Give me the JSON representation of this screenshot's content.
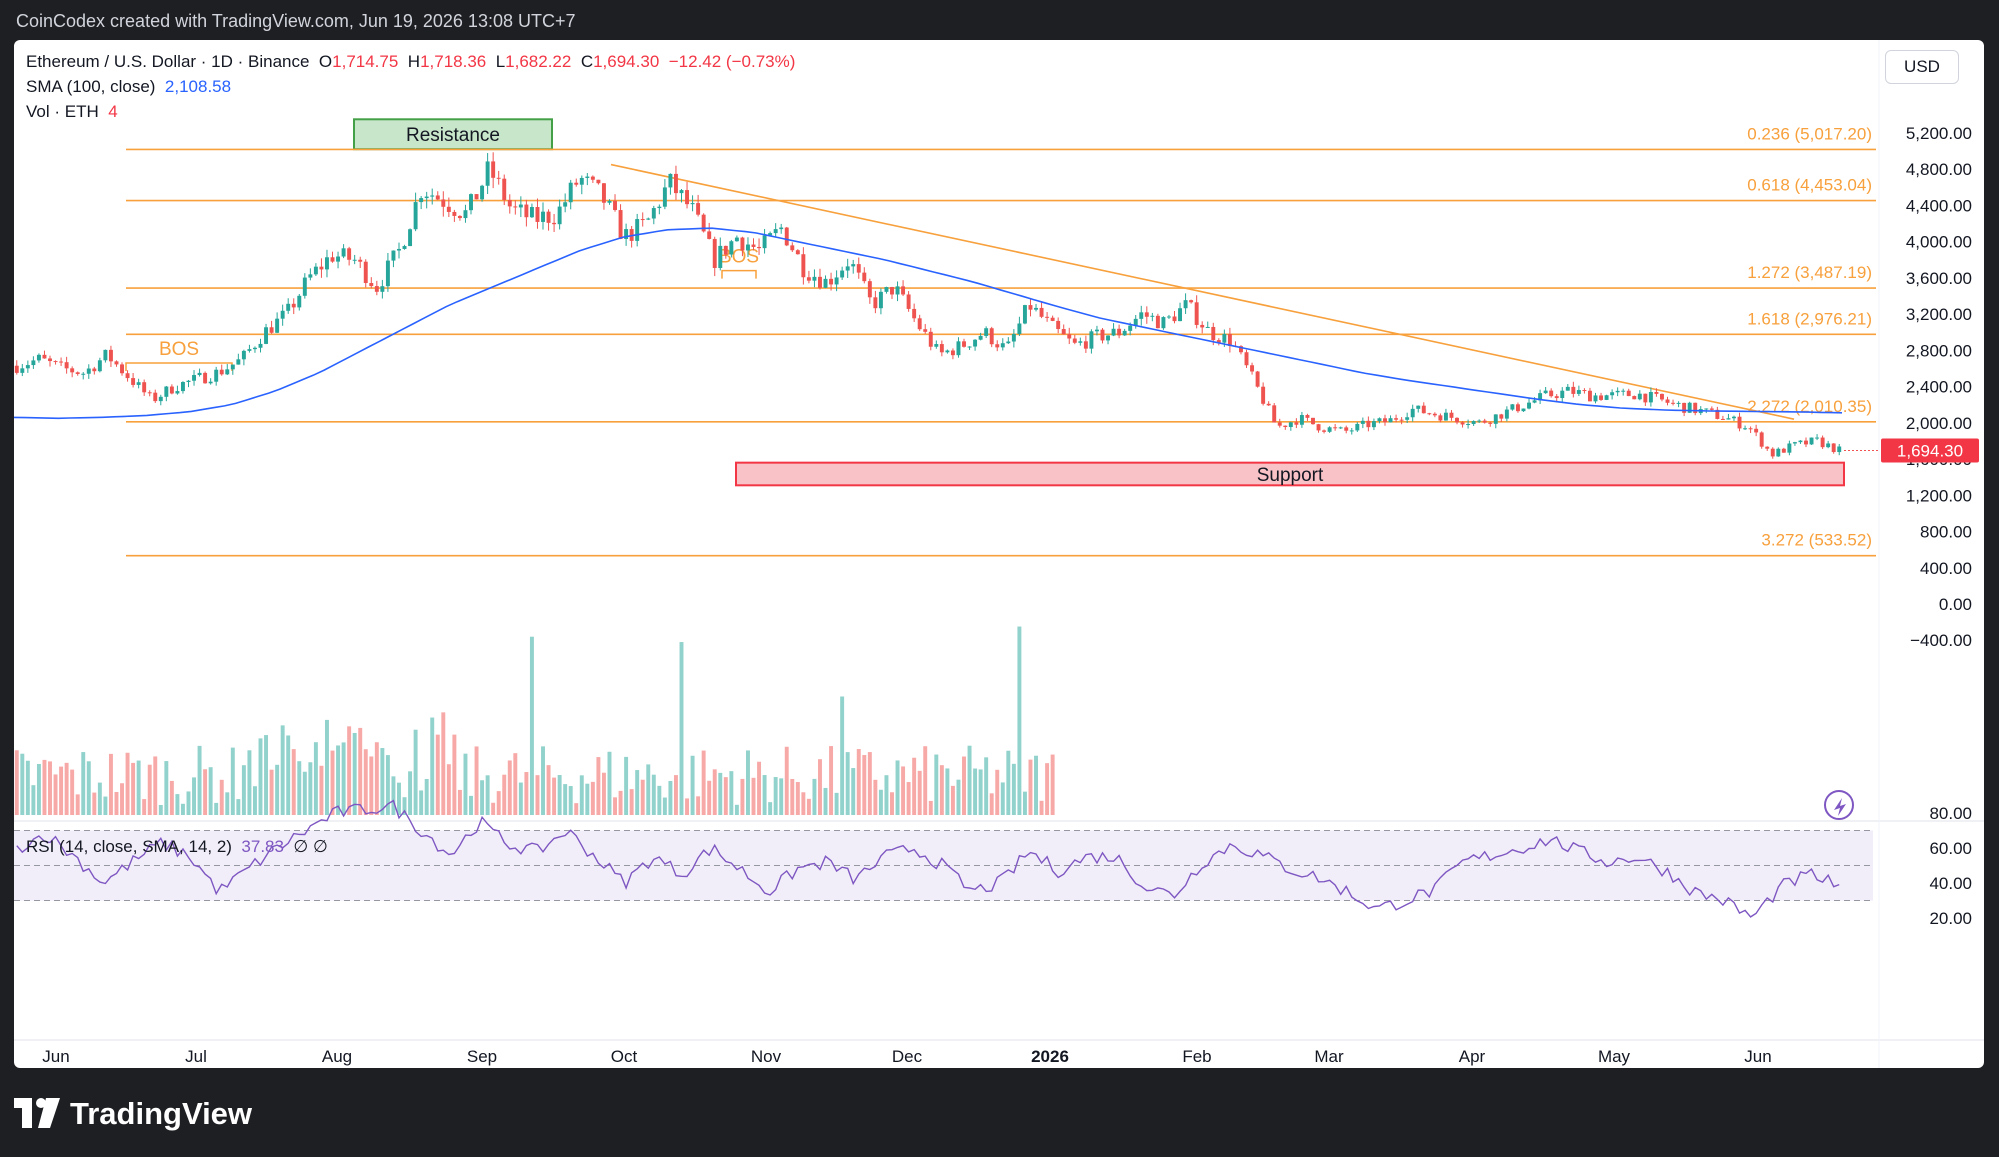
{
  "header": {
    "caption": "CoinCodex created with TradingView.com, Jun 19, 2026 13:08 UTC+7"
  },
  "legend": {
    "symbol": "Ethereum / U.S. Dollar · 1D · Binance",
    "open_label": "O",
    "open": "1,714.75",
    "high_label": "H",
    "high": "1,718.36",
    "low_label": "L",
    "low": "1,682.22",
    "close_label": "C",
    "close": "1,694.30",
    "change": "−12.42 (−0.73%)",
    "sma_label": "SMA (100, close)",
    "sma_value": "2,108.58",
    "vol_label": "Vol · ETH",
    "vol_value": "4",
    "rsi_label": "RSI (14, close, SMA, 14, 2)",
    "rsi_value": "37.83",
    "rsi_extra": "∅ ∅"
  },
  "currency_button": "USD",
  "footer": {
    "brand": "TradingView"
  },
  "colors": {
    "up": "#26a69a",
    "down": "#ef5350",
    "sma": "#2962ff",
    "fib": "#f7a03c",
    "rsi": "#7e57c2",
    "support_fill": "#f9c2c6",
    "support_border": "#f23645",
    "resistance_fill": "#c8e6c9",
    "resistance_border": "#43a047"
  },
  "chart_data": {
    "type": "candlestick",
    "price_axis_ticks": [
      "5,200.00",
      "4,800.00",
      "4,400.00",
      "4,000.00",
      "3,600.00",
      "3,200.00",
      "2,800.00",
      "2,400.00",
      "2,000.00",
      "1,600.00",
      "1,200.00",
      "800.00",
      "400.00",
      "0.00",
      "−400.00"
    ],
    "price_ticks_numeric": [
      5200,
      4800,
      4400,
      4000,
      3600,
      3200,
      2800,
      2400,
      2000,
      1600,
      1200,
      800,
      400,
      0,
      -400
    ],
    "rsi_axis_ticks": [
      "80.00",
      "60.00",
      "40.00",
      "20.00"
    ],
    "rsi_ticks_numeric": [
      80,
      60,
      40,
      20
    ],
    "x_axis_labels": [
      "Jun",
      "Jul",
      "Aug",
      "Sep",
      "Oct",
      "Nov",
      "Dec",
      "2026",
      "Feb",
      "Mar",
      "Apr",
      "May",
      "Jun"
    ],
    "current_price_label": "1,694.30",
    "current_price": 1694.3,
    "fib_levels": [
      {
        "label": "0.236 (5,017.20)",
        "value": 5017.2
      },
      {
        "label": "0.618 (4,453.04)",
        "value": 4453.04
      },
      {
        "label": "1.272 (3,487.19)",
        "value": 3487.19
      },
      {
        "label": "1.618 (2,976.21)",
        "value": 2976.21
      },
      {
        "label": "2.272 (2,010.35)",
        "value": 2010.35
      },
      {
        "label": "3.272 (533.52)",
        "value": 533.52
      }
    ],
    "zones": [
      {
        "label": "Resistance",
        "from": 5020,
        "to": 5350
      },
      {
        "label": "Support",
        "from": 1310,
        "to": 1560
      }
    ],
    "bos_labels": [
      "BOS",
      "BOS"
    ],
    "series_close": [
      2630,
      2700,
      2600,
      2550,
      2750,
      2500,
      2250,
      2400,
      2480,
      2560,
      2700,
      3000,
      3200,
      3600,
      3850,
      3800,
      3500,
      3900,
      4600,
      4450,
      4300,
      4800,
      4350,
      4250,
      4300,
      4700,
      4500,
      4050,
      4200,
      4650,
      4350,
      3800,
      4050,
      3900,
      4150,
      3700,
      3550,
      3800,
      3300,
      3500,
      3100,
      2750,
      2850,
      3000,
      2800,
      3300,
      3050,
      2850,
      2950,
      3000,
      3200,
      3100,
      3300,
      3000,
      2900,
      2450,
      1950,
      2050,
      1950,
      1900,
      1980,
      2020,
      2150,
      2100,
      2050,
      2000,
      2100,
      2200,
      2300,
      2350,
      2300,
      2300,
      2320,
      2250,
      2180,
      2120,
      2050,
      1950,
      1650,
      1750,
      1800,
      1694
    ],
    "sma": [
      2060,
      2050,
      2060,
      2080,
      2120,
      2200,
      2350,
      2550,
      2800,
      3050,
      3300,
      3500,
      3700,
      3900,
      4050,
      4130,
      4150,
      4100,
      4000,
      3900,
      3800,
      3680,
      3560,
      3420,
      3280,
      3150,
      3050,
      2950,
      2850,
      2750,
      2650,
      2550,
      2470,
      2400,
      2330,
      2260,
      2200,
      2160,
      2140,
      2130,
      2125,
      2120,
      2110
    ],
    "rsi": [
      60,
      68,
      55,
      40,
      52,
      63,
      55,
      35,
      48,
      60,
      70,
      80,
      82,
      84,
      70,
      56,
      75,
      62,
      58,
      70,
      55,
      40,
      55,
      45,
      60,
      48,
      35,
      48,
      52,
      42,
      55,
      60,
      50,
      35,
      40,
      58,
      47,
      55,
      55,
      38,
      33,
      52,
      62,
      56,
      48,
      43,
      35,
      25,
      30,
      36,
      52,
      56,
      60,
      65,
      58,
      52,
      55,
      47,
      35,
      30,
      20,
      38,
      45,
      38
    ]
  }
}
